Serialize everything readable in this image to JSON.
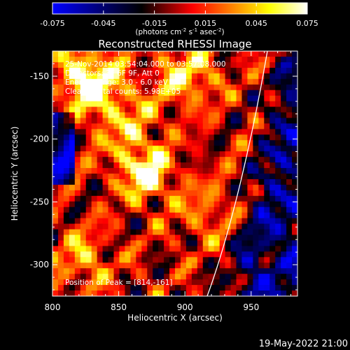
{
  "chart_data": {
    "type": "heatmap",
    "title": "Reconstructed RHESSI Image",
    "xlabel": "Heliocentric X (arcsec)",
    "ylabel": "Heliocentric Y (arcsec)",
    "xlim": [
      800,
      985
    ],
    "ylim": [
      -325,
      -130
    ],
    "x_ticks": [
      "800",
      "850",
      "900",
      "950"
    ],
    "x_tick_values": [
      800,
      850,
      900,
      950
    ],
    "y_ticks": [
      "-150",
      "-200",
      "-250",
      "-300"
    ],
    "y_tick_values": [
      -150,
      -200,
      -250,
      -300
    ],
    "colorbar": {
      "range": [
        -0.075,
        0.075
      ],
      "tick_labels": [
        "-0.075",
        "-0.045",
        "-0.015",
        "0.015",
        "0.045",
        "0.075"
      ],
      "tick_values": [
        -0.075,
        -0.045,
        -0.015,
        0.015,
        0.045,
        0.075
      ],
      "units_label": "(photons cm",
      "units_sup1": "-2",
      "units_mid": " s",
      "units_sup2": "-1",
      "units_end": " asec",
      "units_sup3": "-2",
      "units_close": ")",
      "colormap": [
        "#0000ff",
        "#000000",
        "#ff0000",
        "#ffff00",
        "#ffffff"
      ]
    },
    "annotations": {
      "line1": "25-Nov-2014 03:54:04.000 to 03:57:08.000",
      "line2": "Detectors: 3F 6F 9F, Att 0",
      "line3": "Energy Range: 3.0 - 6.0 keV",
      "line4": "Clean    Total counts: 5.98E+05",
      "peak": "Position of Peak = [814,-161]"
    },
    "peak_position": [
      814,
      -161
    ],
    "limb_curve": {
      "color": "#ffffff"
    }
  },
  "footer": {
    "timestamp": "19-May-2022 21:00"
  }
}
